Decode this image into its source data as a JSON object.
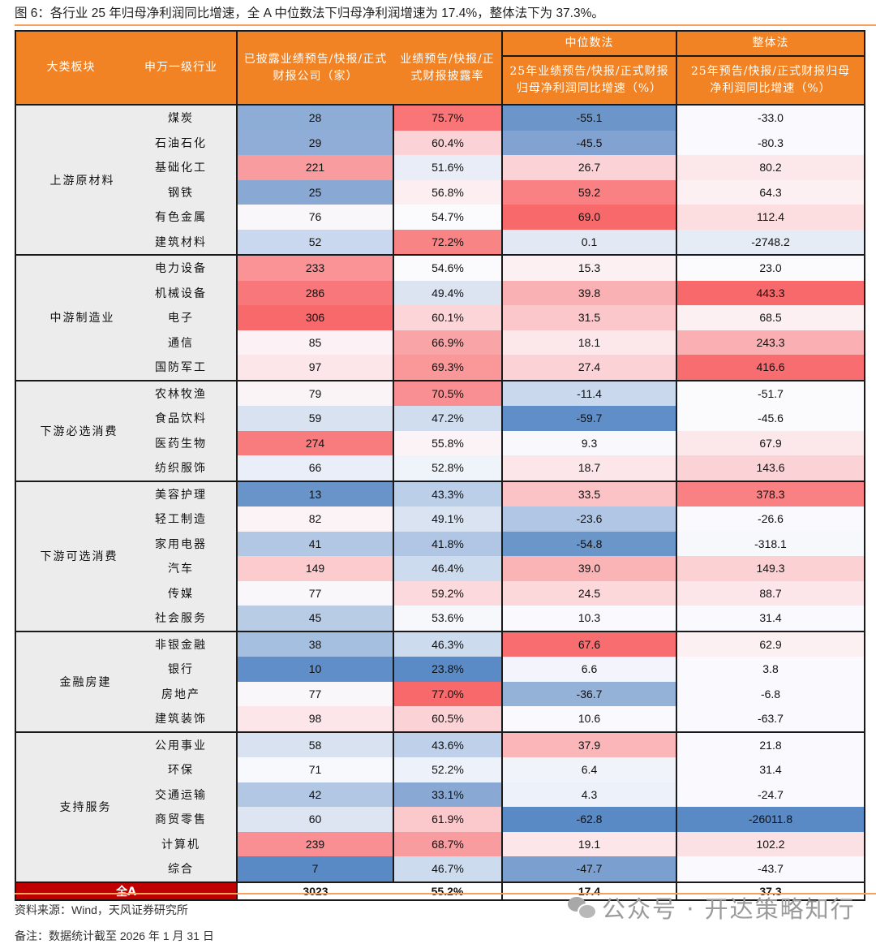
{
  "title": "图 6：各行业 25 年归母净利润同比增速，全 A 中位数法下归母净利润增速为 17.4%，整体法下为 37.3%。",
  "header": {
    "col_group": "大类板块",
    "col_industry": "申万一级行业",
    "col_count": "已披露业绩预告/快报/正式财报公司（家）",
    "col_rate": "业绩预告/快报/正式财报披露率",
    "median_group": "中位数法",
    "median_col": "25年业绩预告/快报/正式财报归母净利润同比增速（%）",
    "overall_group": "整体法",
    "overall_col": "25年预告/快报/正式财报归母净利润同比增速（%）"
  },
  "colors": {
    "header_bg": "#f28325",
    "total_label_bg": "#c00000",
    "group_bg": "#ececec",
    "heat_red": "#f8696b",
    "heat_blue": "#5a8ac6",
    "heat_mid": "#fcfcff"
  },
  "groups": [
    {
      "name": "上游原材料",
      "rows": [
        {
          "industry": "煤炭",
          "count": "28",
          "rate": "75.7%",
          "median": "-55.1",
          "overall": "-33.0",
          "bg": [
            "#8eadd6",
            "#f97577",
            "#6c96c9",
            "#fafafe"
          ]
        },
        {
          "industry": "石油石化",
          "count": "29",
          "rate": "60.4%",
          "median": "-45.5",
          "overall": "-80.3",
          "bg": [
            "#8fadd6",
            "#fbd3d6",
            "#82a3d2",
            "#fafafe"
          ]
        },
        {
          "industry": "基础化工",
          "count": "221",
          "rate": "51.6%",
          "median": "26.7",
          "overall": "80.2",
          "bg": [
            "#f89ca0",
            "#e8edf7",
            "#fbd3d6",
            "#fce8eb"
          ]
        },
        {
          "industry": "钢铁",
          "count": "25",
          "rate": "56.8%",
          "median": "59.2",
          "overall": "64.3",
          "bg": [
            "#89a9d4",
            "#fceef1",
            "#f98183",
            "#fdf0f2"
          ]
        },
        {
          "industry": "有色金属",
          "count": "76",
          "rate": "54.7%",
          "median": "69.0",
          "overall": "112.4",
          "bg": [
            "#faf7fb",
            "#fbfbfe",
            "#f8696b",
            "#fcdee1"
          ]
        },
        {
          "industry": "建筑材料",
          "count": "52",
          "rate": "72.2%",
          "median": "0.1",
          "overall": "-2748.2",
          "bg": [
            "#c9d8ee",
            "#f98486",
            "#e2e9f5",
            "#e5ecf6"
          ]
        }
      ]
    },
    {
      "name": "中游制造业",
      "rows": [
        {
          "industry": "电力设备",
          "count": "233",
          "rate": "54.6%",
          "median": "15.3",
          "overall": "23.0",
          "bg": [
            "#f99396",
            "#fbfbfe",
            "#fcf0f2",
            "#fbfbfe"
          ]
        },
        {
          "industry": "机械设备",
          "count": "286",
          "rate": "49.4%",
          "median": "39.8",
          "overall": "443.3",
          "bg": [
            "#f8777a",
            "#dce4f2",
            "#fab1b3",
            "#f8696b"
          ]
        },
        {
          "industry": "电子",
          "count": "306",
          "rate": "60.1%",
          "median": "31.5",
          "overall": "68.5",
          "bg": [
            "#f8696b",
            "#fbd5d8",
            "#fbc7ca",
            "#fcf0f2"
          ]
        },
        {
          "industry": "通信",
          "count": "85",
          "rate": "66.9%",
          "median": "18.1",
          "overall": "243.3",
          "bg": [
            "#fcf2f5",
            "#f9a5a8",
            "#fce8eb",
            "#fab0b2"
          ]
        },
        {
          "industry": "国防军工",
          "count": "97",
          "rate": "69.3%",
          "median": "27.4",
          "overall": "416.6",
          "bg": [
            "#fce6e9",
            "#f99799",
            "#fbd3d6",
            "#f86e70"
          ]
        }
      ]
    },
    {
      "name": "下游必选消费",
      "rows": [
        {
          "industry": "农林牧渔",
          "count": "79",
          "rate": "70.5%",
          "median": "-11.4",
          "overall": "-51.7",
          "bg": [
            "#fbf4f7",
            "#f98f92",
            "#c9d8ec",
            "#fbfbfe"
          ]
        },
        {
          "industry": "食品饮料",
          "count": "59",
          "rate": "47.2%",
          "median": "-59.7",
          "overall": "-45.6",
          "bg": [
            "#d8e2f1",
            "#d0ddef",
            "#5f8ec8",
            "#fbfbfe"
          ]
        },
        {
          "industry": "医药生物",
          "count": "274",
          "rate": "55.8%",
          "median": "9.3",
          "overall": "67.9",
          "bg": [
            "#f87b7e",
            "#fcf3f6",
            "#f9f9fd",
            "#fce8eb"
          ]
        },
        {
          "industry": "纺织服饰",
          "count": "66",
          "rate": "52.8%",
          "median": "18.7",
          "overall": "143.6",
          "bg": [
            "#e9eef8",
            "#eff3fa",
            "#fce6e9",
            "#fbd3d6"
          ]
        }
      ]
    },
    {
      "name": "下游可选消费",
      "rows": [
        {
          "industry": "美容护理",
          "count": "13",
          "rate": "43.3%",
          "median": "33.5",
          "overall": "378.3",
          "bg": [
            "#6894ca",
            "#bccfe8",
            "#fbc3c5",
            "#f98183"
          ]
        },
        {
          "industry": "轻工制造",
          "count": "82",
          "rate": "49.1%",
          "median": "-23.6",
          "overall": "-26.6",
          "bg": [
            "#fbf3f6",
            "#dae3f2",
            "#b0c6e4",
            "#fafafe"
          ]
        },
        {
          "industry": "家用电器",
          "count": "41",
          "rate": "41.8%",
          "median": "-54.8",
          "overall": "-318.1",
          "bg": [
            "#b2c7e4",
            "#b0c6e4",
            "#6a96ca",
            "#f6f8fc"
          ]
        },
        {
          "industry": "汽车",
          "count": "149",
          "rate": "46.4%",
          "median": "39.0",
          "overall": "149.3",
          "bg": [
            "#fbcbce",
            "#cddbee",
            "#fab4b6",
            "#fbd1d4"
          ]
        },
        {
          "industry": "传媒",
          "count": "77",
          "rate": "59.2%",
          "median": "24.5",
          "overall": "88.7",
          "bg": [
            "#faf7fb",
            "#fbd9dc",
            "#fcd8db",
            "#fce6e9"
          ]
        },
        {
          "industry": "社会服务",
          "count": "45",
          "rate": "53.6%",
          "median": "10.3",
          "overall": "31.4",
          "bg": [
            "#b9cce6",
            "#f6f8fc",
            "#fafafe",
            "#fafafe"
          ]
        }
      ]
    },
    {
      "name": "金融房建",
      "rows": [
        {
          "industry": "非银金融",
          "count": "38",
          "rate": "46.3%",
          "median": "67.6",
          "overall": "62.9",
          "bg": [
            "#a5bfe0",
            "#cddbee",
            "#f86d6f",
            "#fdf0f2"
          ]
        },
        {
          "industry": "银行",
          "count": "10",
          "rate": "23.8%",
          "median": "6.6",
          "overall": "3.8",
          "bg": [
            "#5f8ec8",
            "#5b8bc7",
            "#f4f5fc",
            "#fafafe"
          ]
        },
        {
          "industry": "房地产",
          "count": "77",
          "rate": "77.0%",
          "median": "-36.7",
          "overall": "-6.8",
          "bg": [
            "#faf7fb",
            "#f8696b",
            "#94b1d8",
            "#fafafe"
          ]
        },
        {
          "industry": "建筑装饰",
          "count": "98",
          "rate": "60.5%",
          "median": "10.6",
          "overall": "-63.7",
          "bg": [
            "#fce6e9",
            "#fbd3d6",
            "#fafafe",
            "#fafafe"
          ]
        }
      ]
    },
    {
      "name": "支持服务",
      "rows": [
        {
          "industry": "公用事业",
          "count": "58",
          "rate": "43.6%",
          "median": "37.9",
          "overall": "21.8",
          "bg": [
            "#d8e2f1",
            "#bfd1ea",
            "#fab6b8",
            "#fafafe"
          ]
        },
        {
          "industry": "环保",
          "count": "71",
          "rate": "52.2%",
          "median": "6.4",
          "overall": "31.4",
          "bg": [
            "#f8f9fd",
            "#edf1f9",
            "#f0f3fa",
            "#fafafe"
          ]
        },
        {
          "industry": "交通运输",
          "count": "42",
          "rate": "33.1%",
          "median": "4.3",
          "overall": "-24.7",
          "bg": [
            "#b2c7e4",
            "#89a9d4",
            "#edf1f9",
            "#fafafe"
          ]
        },
        {
          "industry": "商贸零售",
          "count": "60",
          "rate": "61.9%",
          "median": "-62.8",
          "overall": "-26011.8",
          "bg": [
            "#dde5f3",
            "#fbc9cc",
            "#5a8ac6",
            "#5a8ac6"
          ]
        },
        {
          "industry": "计算机",
          "count": "239",
          "rate": "68.7%",
          "median": "19.1",
          "overall": "102.2",
          "bg": [
            "#f98f92",
            "#f99c9f",
            "#fce6e9",
            "#fce1e4"
          ]
        },
        {
          "industry": "综合",
          "count": "7",
          "rate": "46.7%",
          "median": "-47.7",
          "overall": "-43.7",
          "bg": [
            "#5a8ac6",
            "#cddbee",
            "#7ba0d0",
            "#fafafe"
          ]
        }
      ]
    }
  ],
  "total": {
    "label": "全A",
    "count": "3023",
    "rate": "55.2%",
    "median": "17.4",
    "overall": "37.3"
  },
  "footer": {
    "source": "资料来源：Wind，天风证券研究所",
    "note": "备注：数据统计截至 2026 年 1 月 31 日",
    "watermark": "公众号 · 开达策略知行"
  },
  "chart_data": {
    "type": "table",
    "title": "图 6：各行业 25 年归母净利润同比增速，全 A 中位数法下归母净利润增速为 17.4%，整体法下为 37.3%。",
    "columns": [
      "大类板块",
      "申万一级行业",
      "已披露业绩预告/快报/正式财报公司（家）",
      "业绩预告/快报/正式财报披露率",
      "中位数法：25年归母净利润同比增速（%）",
      "整体法：25年归母净利润同比增速（%）"
    ],
    "rows": [
      [
        "上游原材料",
        "煤炭",
        28,
        "75.7%",
        -55.1,
        -33.0
      ],
      [
        "上游原材料",
        "石油石化",
        29,
        "60.4%",
        -45.5,
        -80.3
      ],
      [
        "上游原材料",
        "基础化工",
        221,
        "51.6%",
        26.7,
        80.2
      ],
      [
        "上游原材料",
        "钢铁",
        25,
        "56.8%",
        59.2,
        64.3
      ],
      [
        "上游原材料",
        "有色金属",
        76,
        "54.7%",
        69.0,
        112.4
      ],
      [
        "上游原材料",
        "建筑材料",
        52,
        "72.2%",
        0.1,
        -2748.2
      ],
      [
        "中游制造业",
        "电力设备",
        233,
        "54.6%",
        15.3,
        23.0
      ],
      [
        "中游制造业",
        "机械设备",
        286,
        "49.4%",
        39.8,
        443.3
      ],
      [
        "中游制造业",
        "电子",
        306,
        "60.1%",
        31.5,
        68.5
      ],
      [
        "中游制造业",
        "通信",
        85,
        "66.9%",
        18.1,
        243.3
      ],
      [
        "中游制造业",
        "国防军工",
        97,
        "69.3%",
        27.4,
        416.6
      ],
      [
        "下游必选消费",
        "农林牧渔",
        79,
        "70.5%",
        -11.4,
        -51.7
      ],
      [
        "下游必选消费",
        "食品饮料",
        59,
        "47.2%",
        -59.7,
        -45.6
      ],
      [
        "下游必选消费",
        "医药生物",
        274,
        "55.8%",
        9.3,
        67.9
      ],
      [
        "下游必选消费",
        "纺织服饰",
        66,
        "52.8%",
        18.7,
        143.6
      ],
      [
        "下游可选消费",
        "美容护理",
        13,
        "43.3%",
        33.5,
        378.3
      ],
      [
        "下游可选消费",
        "轻工制造",
        82,
        "49.1%",
        -23.6,
        -26.6
      ],
      [
        "下游可选消费",
        "家用电器",
        41,
        "41.8%",
        -54.8,
        -318.1
      ],
      [
        "下游可选消费",
        "汽车",
        149,
        "46.4%",
        39.0,
        149.3
      ],
      [
        "下游可选消费",
        "传媒",
        77,
        "59.2%",
        24.5,
        88.7
      ],
      [
        "下游可选消费",
        "社会服务",
        45,
        "53.6%",
        10.3,
        31.4
      ],
      [
        "金融房建",
        "非银金融",
        38,
        "46.3%",
        67.6,
        62.9
      ],
      [
        "金融房建",
        "银行",
        10,
        "23.8%",
        6.6,
        3.8
      ],
      [
        "金融房建",
        "房地产",
        77,
        "77.0%",
        -36.7,
        -6.8
      ],
      [
        "金融房建",
        "建筑装饰",
        98,
        "60.5%",
        10.6,
        -63.7
      ],
      [
        "支持服务",
        "公用事业",
        58,
        "43.6%",
        37.9,
        21.8
      ],
      [
        "支持服务",
        "环保",
        71,
        "52.2%",
        6.4,
        31.4
      ],
      [
        "支持服务",
        "交通运输",
        42,
        "33.1%",
        4.3,
        -24.7
      ],
      [
        "支持服务",
        "商贸零售",
        60,
        "61.9%",
        -62.8,
        -26011.8
      ],
      [
        "支持服务",
        "计算机",
        239,
        "68.7%",
        19.1,
        102.2
      ],
      [
        "支持服务",
        "综合",
        7,
        "46.7%",
        -47.7,
        -43.7
      ],
      [
        "全A",
        "",
        3023,
        "55.2%",
        17.4,
        37.3
      ]
    ]
  }
}
